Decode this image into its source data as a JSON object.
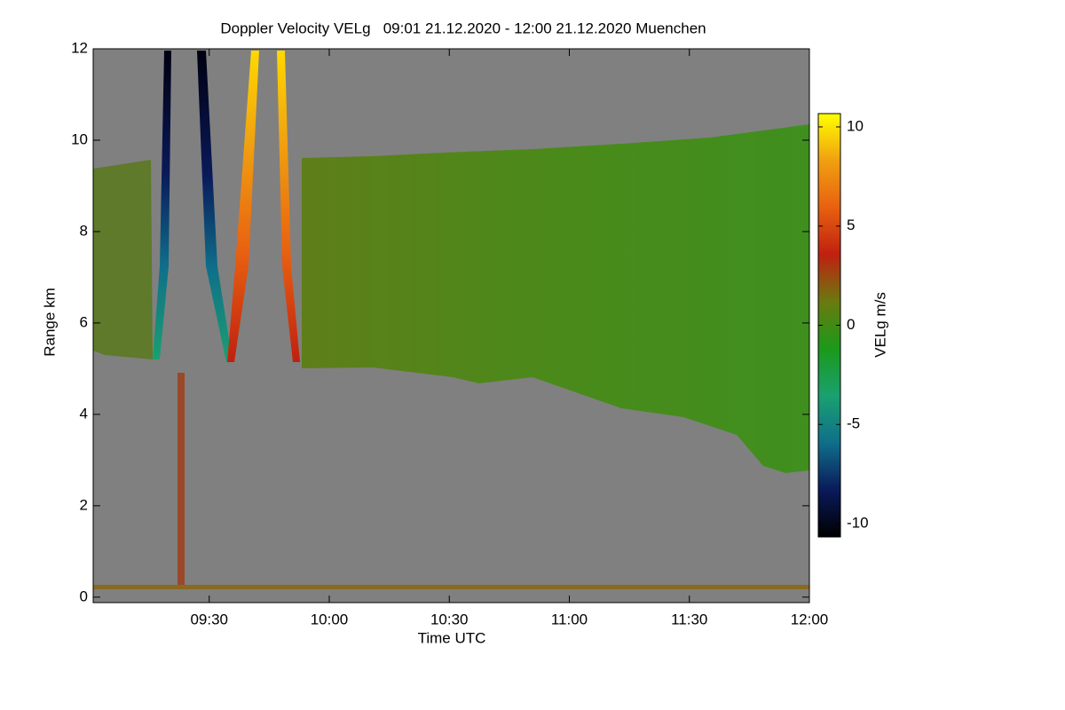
{
  "chart_data": {
    "type": "heatmap",
    "title": "Doppler Velocity VELg   09:01 21.12.2020 - 12:00 21.12.2020 Muenchen",
    "xlabel": "Time UTC",
    "ylabel": "Range km",
    "xlim": [
      541,
      720
    ],
    "xticks": [
      {
        "value": 570,
        "label": "09:30"
      },
      {
        "value": 600,
        "label": "10:00"
      },
      {
        "value": 630,
        "label": "10:30"
      },
      {
        "value": 660,
        "label": "11:00"
      },
      {
        "value": 690,
        "label": "11:30"
      },
      {
        "value": 720,
        "label": "12:00"
      }
    ],
    "ylim": [
      -0.12,
      12
    ],
    "yticks": [
      0,
      2,
      4,
      6,
      8,
      10,
      12
    ],
    "background_color": "#808080",
    "colorbar": {
      "label": "VELg m/s",
      "lim": [
        -10.67,
        10.67
      ],
      "ticks": [
        10,
        5,
        0,
        -5,
        -10
      ],
      "colorscale": [
        "#000000",
        "#0a1a5a",
        "#0f6f8a",
        "#1aa070",
        "#1a9a1a",
        "#6a7a10",
        "#c02010",
        "#e86010",
        "#f0a010",
        "#ffff00"
      ]
    }
  }
}
